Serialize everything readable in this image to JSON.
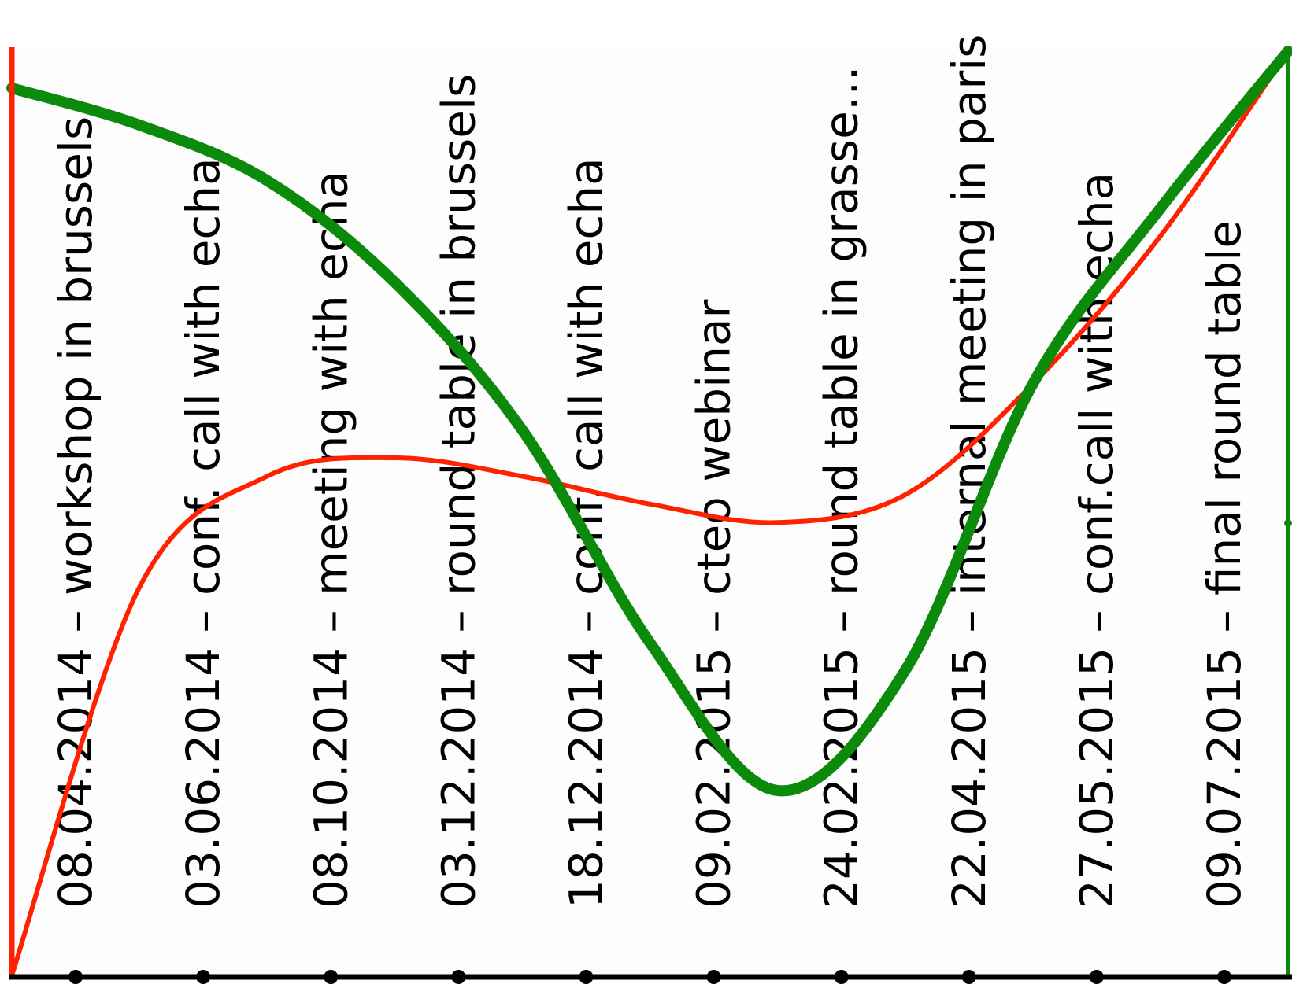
{
  "chart_data": {
    "type": "line",
    "title": "",
    "xlabel": "",
    "ylabel": "",
    "categories": [
      "08.04.2014 – workshop in brussels",
      "03.06.2014 – conf. call with echa",
      "08.10.2014 – meeting with echa",
      "03.12.2014 – round table in brussels",
      "18.12.2014 – conf. call with echa",
      "09.02.2015 – cteo webinar",
      "24.02.2015 – round table in grasse…",
      "22.04.2015 – internal meeting in paris",
      "27.05.2015 – conf.call with echa",
      "09.07.2015 – final round table"
    ],
    "x": [
      0,
      1,
      2,
      3,
      4,
      5,
      6,
      7,
      8,
      9,
      10
    ],
    "xlim": [
      0,
      10
    ],
    "ylim": [
      0,
      100
    ],
    "series": [
      {
        "color": "#ff2200",
        "values": [
          0,
          42,
          54,
          56,
          54,
          51,
          49,
          52,
          64,
          80,
          100
        ]
      },
      {
        "color": "#0b8a0b",
        "values": [
          96,
          92,
          86,
          75,
          59,
          36,
          20,
          33,
          64,
          83,
          100
        ]
      }
    ],
    "grid": false,
    "legend": "none"
  },
  "colors": {
    "axis": "#000000",
    "left_axis": "#ff2200",
    "right_axis": "#0b8a0b",
    "plot_background": "#fdfdfd"
  }
}
